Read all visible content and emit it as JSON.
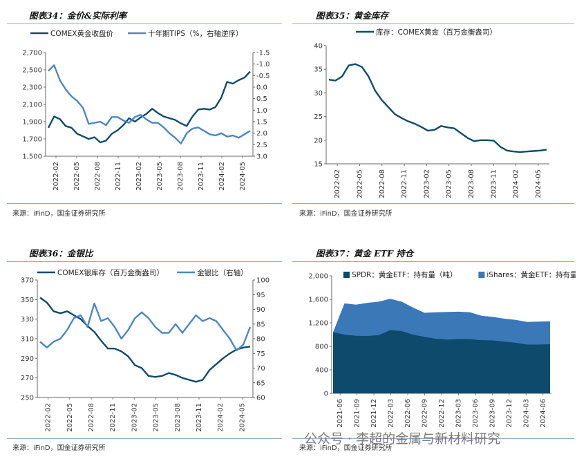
{
  "panels": [
    {
      "title": "图表34：金价&实际利率",
      "source": "来源：iFinD，国金证券研究所"
    },
    {
      "title": "图表35：黄金库存",
      "source": "来源：iFinD，国金证券研究所"
    },
    {
      "title": "图表36：金银比",
      "source": "来源：iFinD，国金证券研究所"
    },
    {
      "title": "图表37：黄金 ETF 持仓",
      "source": "来源：iFinD，国金证券研究所"
    }
  ],
  "watermark": "公众号 · 李超的金属与新材料研究",
  "colors": {
    "dark": "#0e4a6b",
    "light": "#4a86c5",
    "mid": "#3a78b8",
    "rule": "#8fa9c4"
  },
  "chart_data": [
    {
      "type": "line",
      "legend": [
        "COMEX黄金收盘价",
        "十年期TIPS（%，右轴逆序）"
      ],
      "ylim_left": [
        1500,
        2700
      ],
      "yticks_left": [
        "1,500",
        "1,700",
        "1,900",
        "2,100",
        "2,300",
        "2,500",
        "2,700"
      ],
      "ylim_right": [
        3.0,
        -1.5
      ],
      "yticks_right": [
        "-1.5",
        "-1.0",
        "-0.5",
        "0.0",
        "0.5",
        "1.0",
        "1.5",
        "2.0",
        "2.5",
        "3.0"
      ],
      "xticks": [
        "2022-02",
        "2022-05",
        "2022-08",
        "2022-11",
        "2023-02",
        "2023-05",
        "2023-08",
        "2023-11",
        "2024-02",
        "2024-05"
      ],
      "series": [
        {
          "name": "COMEX黄金收盘价",
          "axis": "left",
          "points": [
            [
              0,
              1830
            ],
            [
              1,
              1960
            ],
            [
              2,
              1930
            ],
            [
              3,
              1850
            ],
            [
              4,
              1830
            ],
            [
              5,
              1760
            ],
            [
              6,
              1730
            ],
            [
              7,
              1700
            ],
            [
              8,
              1720
            ],
            [
              9,
              1660
            ],
            [
              10,
              1680
            ],
            [
              11,
              1760
            ],
            [
              12,
              1800
            ],
            [
              13,
              1860
            ],
            [
              14,
              1940
            ],
            [
              15,
              1900
            ],
            [
              16,
              1950
            ],
            [
              17,
              1990
            ],
            [
              18,
              2050
            ],
            [
              19,
              2000
            ],
            [
              20,
              1960
            ],
            [
              21,
              1940
            ],
            [
              22,
              1920
            ],
            [
              23,
              1880
            ],
            [
              24,
              1850
            ],
            [
              25,
              1960
            ],
            [
              26,
              2040
            ],
            [
              27,
              2050
            ],
            [
              28,
              2040
            ],
            [
              29,
              2070
            ],
            [
              30,
              2180
            ],
            [
              31,
              2360
            ],
            [
              32,
              2340
            ],
            [
              33,
              2380
            ],
            [
              34,
              2410
            ],
            [
              35,
              2480
            ]
          ]
        },
        {
          "name": "十年期TIPS（%，右轴逆序）",
          "axis": "right",
          "points": [
            [
              0,
              -0.7
            ],
            [
              1,
              -0.95
            ],
            [
              2,
              -0.3
            ],
            [
              3,
              0.1
            ],
            [
              4,
              0.4
            ],
            [
              5,
              0.6
            ],
            [
              6,
              0.9
            ],
            [
              7,
              1.6
            ],
            [
              8,
              1.55
            ],
            [
              9,
              1.5
            ],
            [
              10,
              1.65
            ],
            [
              11,
              1.3
            ],
            [
              12,
              1.3
            ],
            [
              13,
              1.45
            ],
            [
              14,
              1.55
            ],
            [
              15,
              1.3
            ],
            [
              16,
              1.2
            ],
            [
              17,
              1.4
            ],
            [
              18,
              1.55
            ],
            [
              19,
              1.55
            ],
            [
              20,
              1.75
            ],
            [
              21,
              2.0
            ],
            [
              22,
              2.2
            ],
            [
              23,
              2.45
            ],
            [
              24,
              2.0
            ],
            [
              25,
              1.8
            ],
            [
              26,
              1.75
            ],
            [
              27,
              1.9
            ],
            [
              28,
              2.05
            ],
            [
              29,
              2.1
            ],
            [
              30,
              2.0
            ],
            [
              31,
              2.15
            ],
            [
              32,
              2.1
            ],
            [
              33,
              2.2
            ],
            [
              34,
              2.05
            ],
            [
              35,
              1.9
            ]
          ]
        }
      ]
    },
    {
      "type": "line",
      "legend": [
        "库存：COMEX黄金（百万金衡盎司）"
      ],
      "ylim": [
        15,
        40
      ],
      "yticks": [
        "15",
        "20",
        "25",
        "30",
        "35",
        "40"
      ],
      "xticks": [
        "2022-02",
        "2022-05",
        "2022-08",
        "2022-11",
        "2023-02",
        "2023-05",
        "2023-08",
        "2023-11",
        "2024-02",
        "2024-05"
      ],
      "series": [
        {
          "name": "库存：COMEX黄金（百万金衡盎司）",
          "points": [
            [
              0,
              32.8
            ],
            [
              1,
              32.6
            ],
            [
              2,
              33.5
            ],
            [
              3,
              35.8
            ],
            [
              4,
              36.1
            ],
            [
              5,
              35.5
            ],
            [
              6,
              33.5
            ],
            [
              7,
              30.5
            ],
            [
              8,
              28.5
            ],
            [
              9,
              27
            ],
            [
              10,
              25.5
            ],
            [
              11,
              24.7
            ],
            [
              12,
              24
            ],
            [
              13,
              23.5
            ],
            [
              14,
              22.8
            ],
            [
              15,
              22
            ],
            [
              16,
              22.2
            ],
            [
              17,
              23
            ],
            [
              18,
              22.7
            ],
            [
              19,
              22.5
            ],
            [
              20,
              21.5
            ],
            [
              21,
              20.5
            ],
            [
              22,
              19.8
            ],
            [
              23,
              20
            ],
            [
              24,
              20
            ],
            [
              25,
              19.9
            ],
            [
              26,
              18.6
            ],
            [
              27,
              17.8
            ],
            [
              28,
              17.6
            ],
            [
              29,
              17.5
            ],
            [
              30,
              17.6
            ],
            [
              31,
              17.7
            ],
            [
              32,
              17.8
            ],
            [
              33,
              18
            ]
          ]
        }
      ]
    },
    {
      "type": "line",
      "legend": [
        "COMEX银库存（百万金衡盎司）",
        "金银比（右轴）"
      ],
      "ylim_left": [
        250,
        370
      ],
      "yticks_left": [
        "250",
        "270",
        "290",
        "310",
        "330",
        "350",
        "370"
      ],
      "ylim_right": [
        60,
        100
      ],
      "yticks_right": [
        "60",
        "65",
        "70",
        "75",
        "80",
        "85",
        "90",
        "95",
        "100"
      ],
      "xticks": [
        "2022-02",
        "2022-05",
        "2022-08",
        "2022-11",
        "2023-02",
        "2023-05",
        "2023-08",
        "2023-11",
        "2024-02",
        "2024-05"
      ],
      "series": [
        {
          "name": "COMEX银库存（百万金衡盎司）",
          "axis": "left",
          "points": [
            [
              0,
              352
            ],
            [
              1,
              347
            ],
            [
              2,
              338
            ],
            [
              3,
              336
            ],
            [
              4,
              338
            ],
            [
              5,
              334
            ],
            [
              6,
              330
            ],
            [
              7,
              323
            ],
            [
              8,
              317
            ],
            [
              9,
              308
            ],
            [
              10,
              300
            ],
            [
              11,
              300
            ],
            [
              12,
              297
            ],
            [
              13,
              292
            ],
            [
              14,
              283
            ],
            [
              15,
              280
            ],
            [
              16,
              272
            ],
            [
              17,
              271
            ],
            [
              18,
              272
            ],
            [
              19,
              275
            ],
            [
              20,
              273
            ],
            [
              21,
              270
            ],
            [
              22,
              268
            ],
            [
              23,
              266
            ],
            [
              24,
              268
            ],
            [
              25,
              278
            ],
            [
              26,
              284
            ],
            [
              27,
              290
            ],
            [
              28,
              295
            ],
            [
              29,
              299
            ],
            [
              30,
              301
            ],
            [
              31,
              302
            ]
          ]
        },
        {
          "name": "金银比（右轴）",
          "axis": "right",
          "points": [
            [
              0,
              79
            ],
            [
              1,
              77
            ],
            [
              2,
              79
            ],
            [
              3,
              80
            ],
            [
              4,
              83
            ],
            [
              5,
              87
            ],
            [
              6,
              88
            ],
            [
              7,
              84
            ],
            [
              8,
              92
            ],
            [
              9,
              86
            ],
            [
              10,
              87
            ],
            [
              11,
              84
            ],
            [
              12,
              80
            ],
            [
              13,
              83
            ],
            [
              14,
              87
            ],
            [
              15,
              89
            ],
            [
              16,
              87
            ],
            [
              17,
              84
            ],
            [
              18,
              82
            ],
            [
              19,
              82
            ],
            [
              20,
              85
            ],
            [
              21,
              82
            ],
            [
              22,
              85
            ],
            [
              23,
              88
            ],
            [
              24,
              86
            ],
            [
              25,
              87
            ],
            [
              26,
              86
            ],
            [
              27,
              83
            ],
            [
              28,
              80
            ],
            [
              29,
              76
            ],
            [
              30,
              78
            ],
            [
              31,
              84
            ]
          ]
        }
      ]
    },
    {
      "type": "area",
      "legend": [
        "SPDR：黄金ETF：持有量（吨）",
        "iShares：黄金ETF：持有量（吨）"
      ],
      "ylim": [
        0,
        2000
      ],
      "yticks": [
        "0",
        "400",
        "800",
        "1,200",
        "1,600",
        "2,000"
      ],
      "xticks": [
        "2021-06",
        "2021-09",
        "2021-12",
        "2022-03",
        "2022-06",
        "2022-09",
        "2022-12",
        "2023-03",
        "2023-06",
        "2023-09",
        "2023-12",
        "2024-03",
        "2024-06"
      ],
      "stacked": true,
      "series": [
        {
          "name": "SPDR：黄金ETF：持有量（吨）",
          "points": [
            [
              0,
              1040
            ],
            [
              1,
              1000
            ],
            [
              2,
              980
            ],
            [
              3,
              975
            ],
            [
              4,
              990
            ],
            [
              5,
              1075
            ],
            [
              6,
              1060
            ],
            [
              7,
              1000
            ],
            [
              8,
              960
            ],
            [
              9,
              930
            ],
            [
              10,
              915
            ],
            [
              11,
              925
            ],
            [
              12,
              920
            ],
            [
              13,
              905
            ],
            [
              14,
              900
            ],
            [
              15,
              880
            ],
            [
              16,
              860
            ],
            [
              17,
              830
            ],
            [
              18,
              830
            ],
            [
              19,
              835
            ]
          ]
        },
        {
          "name": "iShares：黄金ETF：持有量（吨）",
          "points": [
            [
              0,
              1040
            ],
            [
              1,
              1530
            ],
            [
              2,
              1510
            ],
            [
              3,
              1540
            ],
            [
              4,
              1560
            ],
            [
              5,
              1610
            ],
            [
              6,
              1560
            ],
            [
              7,
              1460
            ],
            [
              8,
              1370
            ],
            [
              9,
              1380
            ],
            [
              10,
              1385
            ],
            [
              11,
              1390
            ],
            [
              12,
              1380
            ],
            [
              13,
              1320
            ],
            [
              14,
              1300
            ],
            [
              15,
              1270
            ],
            [
              16,
              1250
            ],
            [
              17,
              1215
            ],
            [
              18,
              1220
            ],
            [
              19,
              1225
            ]
          ]
        }
      ]
    }
  ]
}
